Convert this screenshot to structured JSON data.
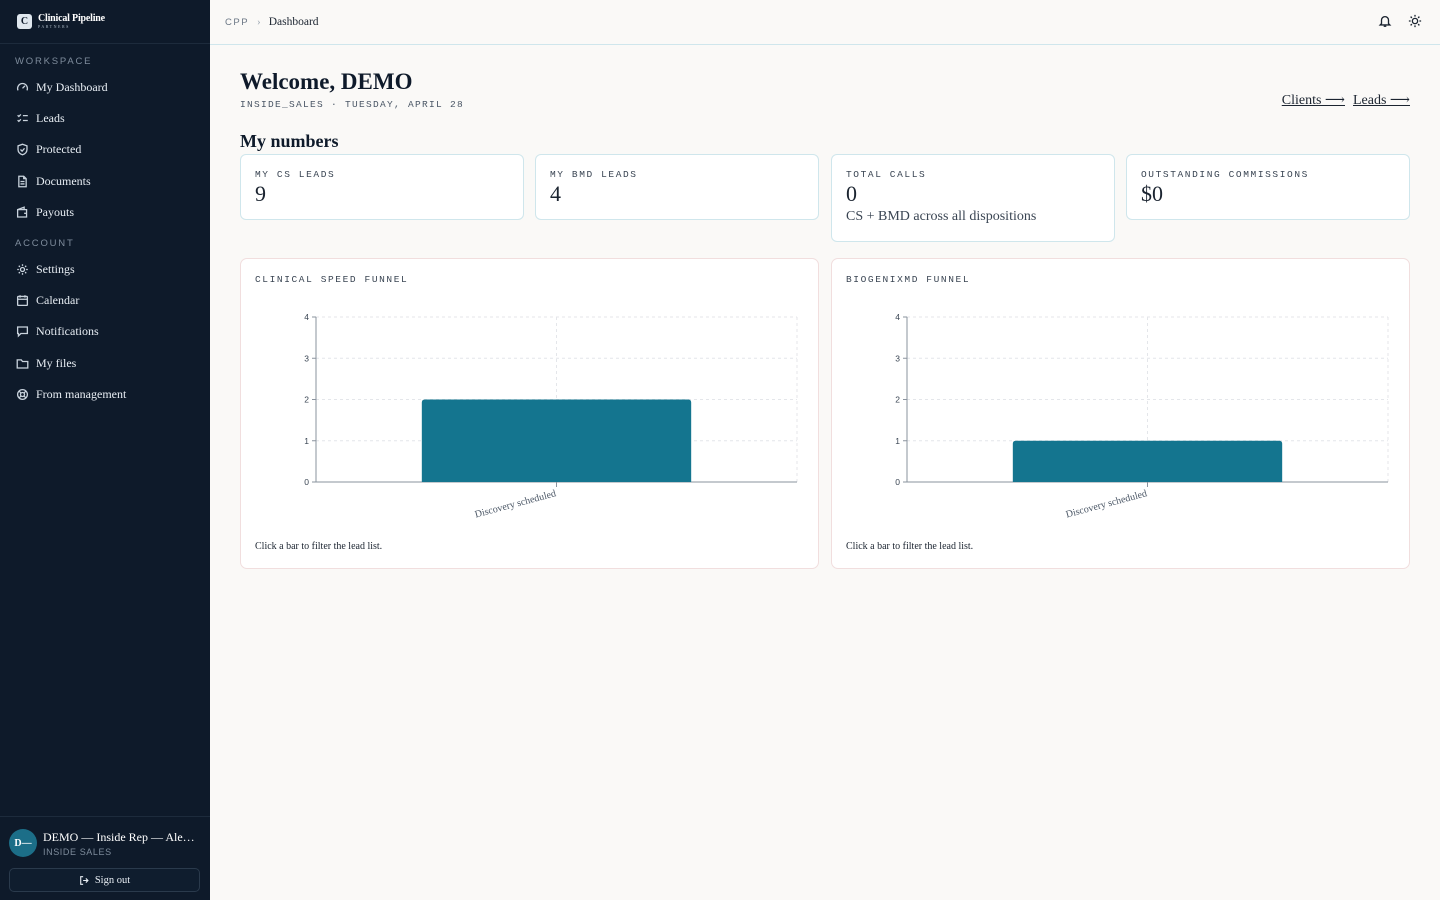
{
  "brand": {
    "logo_letter": "C",
    "name": "Clinical Pipeline",
    "sub": "PARTNERS"
  },
  "sidebar": {
    "sections": [
      {
        "label": "WORKSPACE"
      },
      {
        "label": "ACCOUNT"
      }
    ],
    "items": [
      {
        "label": "My Dashboard",
        "icon": "gauge-icon"
      },
      {
        "label": "Leads",
        "icon": "checklist-icon"
      },
      {
        "label": "Protected",
        "icon": "shield-check-icon"
      },
      {
        "label": "Documents",
        "icon": "document-icon"
      },
      {
        "label": "Payouts",
        "icon": "wallet-icon"
      },
      {
        "label": "Settings",
        "icon": "gear-icon"
      },
      {
        "label": "Calendar",
        "icon": "calendar-icon"
      },
      {
        "label": "Notifications",
        "icon": "chat-icon"
      },
      {
        "label": "My files",
        "icon": "folder-icon"
      },
      {
        "label": "From management",
        "icon": "lifebuoy-icon"
      }
    ]
  },
  "user": {
    "initials": "D—",
    "name": "DEMO — Inside Rep — Alex…",
    "role": "INSIDE SALES",
    "signout_label": "Sign out"
  },
  "topbar": {
    "crumb_root": "CPP",
    "crumb_sep": "›",
    "crumb_current": "Dashboard",
    "icons": [
      "bell-icon",
      "sun-icon"
    ]
  },
  "header": {
    "welcome": "Welcome, DEMO",
    "subline": "INSIDE_SALES · TUESDAY, APRIL 28",
    "links": [
      "Clients ⟶",
      "Leads ⟶"
    ],
    "section_title": "My numbers"
  },
  "stats": [
    {
      "label": "MY CS LEADS",
      "value": "9"
    },
    {
      "label": "MY BMD LEADS",
      "value": "4"
    },
    {
      "label": "TOTAL CALLS",
      "value": "0",
      "note": "CS + BMD across all dispositions"
    },
    {
      "label": "OUTSTANDING COMMISSIONS",
      "value": "$0"
    }
  ],
  "charts": [
    {
      "title": "CLINICAL SPEED FUNNEL",
      "hint": "Click a bar to filter the lead list."
    },
    {
      "title": "BIOGENIXMD FUNNEL",
      "hint": "Click a bar to filter the lead list."
    }
  ],
  "colors": {
    "sidebar_bg": "#0e1a2a",
    "accent": "#14758f",
    "card_border": "#cfe6ec",
    "page_bg": "#faf9f7"
  },
  "chart_data": [
    {
      "type": "bar",
      "categories": [
        "Discovery scheduled"
      ],
      "values": [
        2
      ],
      "ylim": [
        0,
        4
      ],
      "yticks": [
        "0",
        "1",
        "2",
        "3",
        "4"
      ],
      "grid": true
    },
    {
      "type": "bar",
      "categories": [
        "Discovery scheduled"
      ],
      "values": [
        1
      ],
      "ylim": [
        0,
        4
      ],
      "yticks": [
        "0",
        "1",
        "2",
        "3",
        "4"
      ],
      "grid": true
    }
  ]
}
